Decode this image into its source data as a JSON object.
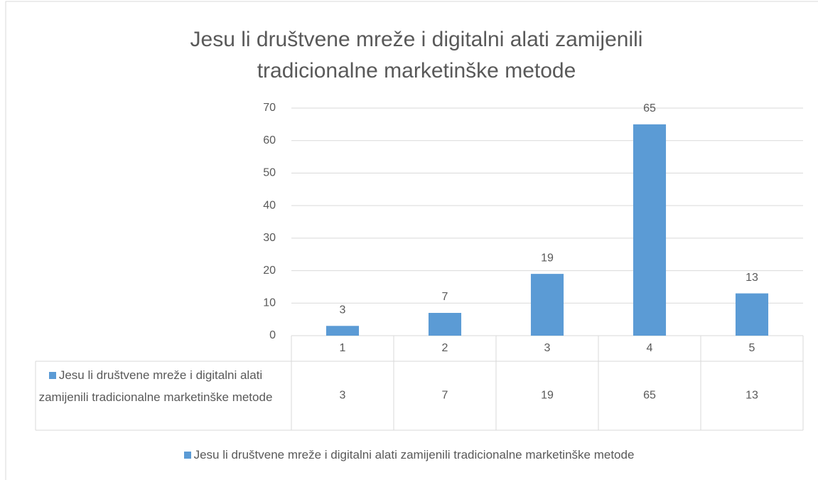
{
  "chart_data": {
    "type": "bar",
    "title": "Jesu li društvene mreže i digitalni alati zamijenili tradicionalne marketinške metode",
    "categories": [
      "1",
      "2",
      "3",
      "4",
      "5"
    ],
    "series": [
      {
        "name": "Jesu li društvene mreže i digitalni alati zamijenili tradicionalne marketinške metode",
        "color": "#5b9bd5",
        "values": [
          3,
          7,
          19,
          65,
          13
        ]
      }
    ],
    "ylim": [
      0,
      70
    ],
    "yticks": [
      0,
      10,
      20,
      30,
      40,
      50,
      60,
      70
    ],
    "grid": true,
    "legend": "bottom",
    "data_table": true
  }
}
